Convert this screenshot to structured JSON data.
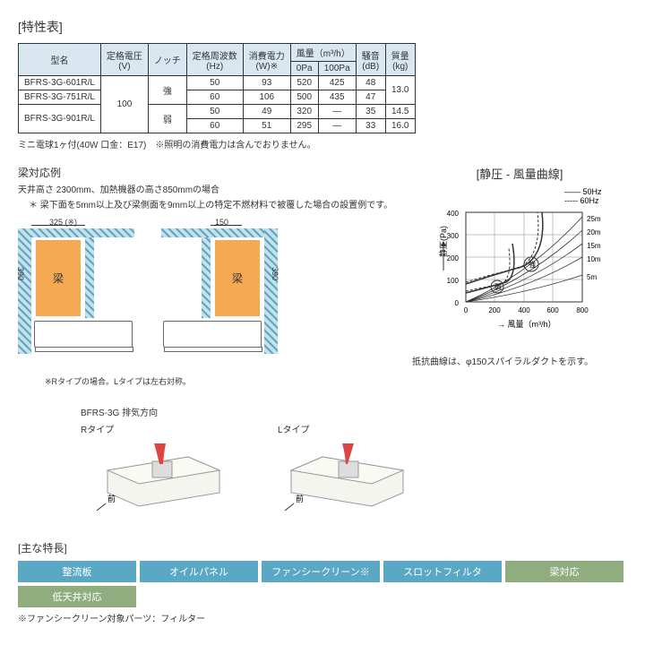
{
  "title": "[特性表]",
  "table": {
    "headers": {
      "model": "型名",
      "voltage": "定格電圧\n(V)",
      "notch": "ノッチ",
      "freq": "定格周波数\n(Hz)",
      "power": "消費電力\n(W)※",
      "airflow": "風量（m³/h）",
      "airflow_0": "0Pa",
      "airflow_100": "100Pa",
      "noise": "騒音\n(dB)",
      "weight": "質量\n(kg)"
    },
    "models": [
      "BFRS-3G-601R/L",
      "BFRS-3G-751R/L",
      "BFRS-3G-901R/L"
    ],
    "voltage": "100",
    "notch_hi": "強",
    "notch_lo": "弱",
    "rows": [
      {
        "freq": "50",
        "power": "93",
        "af0": "520",
        "af100": "425",
        "noise": "48"
      },
      {
        "freq": "60",
        "power": "106",
        "af0": "500",
        "af100": "435",
        "noise": "47"
      },
      {
        "freq": "50",
        "power": "49",
        "af0": "320",
        "af100": "―",
        "noise": "35"
      },
      {
        "freq": "60",
        "power": "51",
        "af0": "295",
        "af100": "―",
        "noise": "33"
      }
    ],
    "weights": [
      "13.0",
      "14.5",
      "16.0"
    ]
  },
  "table_note": "ミニ電球1ヶ付(40W 口金：E17)　※照明の消費電力は含んでおりません。",
  "beam": {
    "title": "梁対応例",
    "sub": "天井高さ 2300mm、加熱機器の高さ850mmの場合",
    "note": "＊ 梁下面を5mm以上及び梁側面を9mm以上の特定不燃材料で被覆した場合の設置例です。",
    "beam_label": "梁",
    "dim1": "325 (※)",
    "dim2": "150",
    "dim_v": "390",
    "diagram_note": "※Rタイプの場合。Lタイプは左右対称。"
  },
  "chart": {
    "title": "[静圧 - 風量曲線]",
    "legend_50": "50Hz",
    "legend_60": "60Hz",
    "ylabel": "静圧(Pa)",
    "xlabel": "風量（m³/h）",
    "yticks": [
      "0",
      "100",
      "200",
      "300",
      "400"
    ],
    "xticks": [
      "0",
      "200",
      "400",
      "600",
      "800"
    ],
    "rlabels": [
      "25m",
      "20m",
      "15m",
      "10m",
      "5m"
    ],
    "strong": "強",
    "weak": "弱",
    "note": "抵抗曲線は、φ150スパイラルダクトを示す。"
  },
  "exhaust": {
    "title": "BFRS-3G 排気方向",
    "rtype": "Rタイプ",
    "ltype": "Lタイプ",
    "front": "前"
  },
  "features": {
    "title": "[主な特長]",
    "tags": [
      {
        "label": "整流板",
        "color": "#5ba8c5"
      },
      {
        "label": "オイルパネル",
        "color": "#5ba8c5"
      },
      {
        "label": "ファンシークリーン※",
        "color": "#5ba8c5"
      },
      {
        "label": "スロットフィルタ",
        "color": "#5ba8c5"
      },
      {
        "label": "梁対応",
        "color": "#8fad7e"
      },
      {
        "label": "低天井対応",
        "color": "#8fad7e"
      }
    ],
    "note": "※ファンシークリーン対象パーツ：フィルター"
  }
}
